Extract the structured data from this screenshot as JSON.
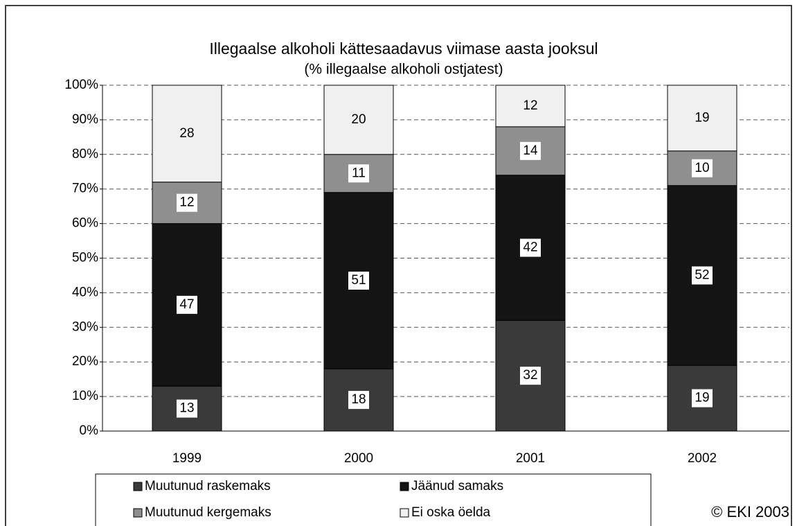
{
  "chart_data": {
    "type": "stacked_bar",
    "title": "Illegaalse alkoholi kättesaadavus viimase aasta jooksul",
    "subtitle": "(% illegaalse alkoholi ostjatest)",
    "annotation": "© EKI 2003",
    "categories": [
      "1999",
      "2000",
      "2001",
      "2002"
    ],
    "series": [
      {
        "name": "Muutunud raskemaks",
        "color": "#3a3a3a",
        "values": [
          13,
          18,
          32,
          19
        ]
      },
      {
        "name": "Jäänud samaks",
        "color": "#141414",
        "values": [
          47,
          51,
          42,
          52
        ]
      },
      {
        "name": "Muutunud kergemaks",
        "color": "#8f8f8f",
        "values": [
          12,
          11,
          14,
          10
        ]
      },
      {
        "name": "Ei oska öelda",
        "color": "#f0f0f0",
        "values": [
          28,
          20,
          12,
          19
        ]
      }
    ],
    "ylim": [
      0,
      100
    ],
    "yticks": [
      {
        "value": 0,
        "label": "0%"
      },
      {
        "value": 10,
        "label": "10%"
      },
      {
        "value": 20,
        "label": "20%"
      },
      {
        "value": 30,
        "label": "30%"
      },
      {
        "value": 40,
        "label": "40%"
      },
      {
        "value": 50,
        "label": "50%"
      },
      {
        "value": 60,
        "label": "60%"
      },
      {
        "value": 70,
        "label": "70%"
      },
      {
        "value": 80,
        "label": "80%"
      },
      {
        "value": 90,
        "label": "90%"
      },
      {
        "value": 100,
        "label": "100%"
      }
    ],
    "grid": true
  }
}
